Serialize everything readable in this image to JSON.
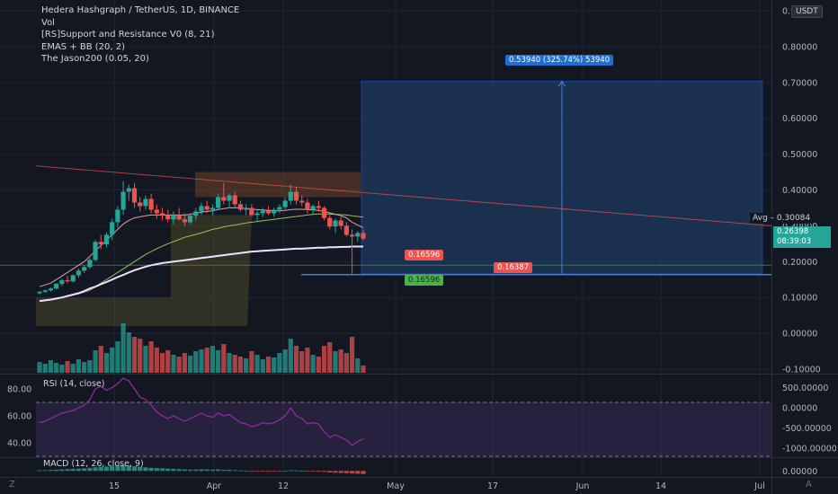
{
  "legend": {
    "title": "Hedera Hashgraph / TetherUS, 1D, BINANCE",
    "line2": "Vol",
    "line3": "[RS]Support and Resistance V0 (8, 21)",
    "line4": "EMAS + BB (20, 2)",
    "line5": "The Jason200 (0.05, 20)"
  },
  "currency_button": "USDT",
  "rsi_label": "RSI (14, close)",
  "macd_label": "MACD (12, 26, close, 9)",
  "badges": {
    "target": "0.53940 (325.74%) 53940",
    "avg_label": "Avg",
    "avg_value": "0.30084",
    "last_price": "0.26398",
    "countdown": "08:39:03",
    "low_red": "0.16596",
    "low_green": "0.16596",
    "line_label": "0.16387"
  },
  "corner": {
    "left": "Z",
    "right": "A"
  },
  "chart_data": [
    {
      "type": "candlestick",
      "title": "Hedera Hashgraph / TetherUS, 1D, BINANCE",
      "y_axis_ticks": [
        "0.90000",
        "0.80000",
        "0.70000",
        "0.60000",
        "0.50000",
        "0.40000",
        "0.30000",
        "0.20000",
        "0.10000",
        "0.00000",
        "-0.10000"
      ],
      "y_axis_values": [
        0.9,
        0.8,
        0.7,
        0.6,
        0.5,
        0.4,
        0.3,
        0.2,
        0.1,
        0.0,
        -0.1
      ],
      "x_axis_ticks": [
        "15",
        "Apr",
        "12",
        "May",
        "17",
        "Jun",
        "14",
        "Jul"
      ],
      "ylim": [
        -0.11,
        0.92
      ],
      "candles": [
        [
          0.112,
          0.118,
          0.108,
          0.116
        ],
        [
          0.116,
          0.122,
          0.112,
          0.12
        ],
        [
          0.12,
          0.128,
          0.116,
          0.125
        ],
        [
          0.125,
          0.14,
          0.122,
          0.138
        ],
        [
          0.138,
          0.152,
          0.132,
          0.148
        ],
        [
          0.148,
          0.16,
          0.14,
          0.145
        ],
        [
          0.145,
          0.165,
          0.142,
          0.162
        ],
        [
          0.162,
          0.18,
          0.155,
          0.175
        ],
        [
          0.175,
          0.19,
          0.168,
          0.185
        ],
        [
          0.185,
          0.21,
          0.18,
          0.205
        ],
        [
          0.205,
          0.26,
          0.2,
          0.255
        ],
        [
          0.255,
          0.275,
          0.235,
          0.248
        ],
        [
          0.248,
          0.282,
          0.24,
          0.275
        ],
        [
          0.275,
          0.32,
          0.26,
          0.31
        ],
        [
          0.31,
          0.355,
          0.295,
          0.345
        ],
        [
          0.345,
          0.425,
          0.33,
          0.395
        ],
        [
          0.395,
          0.415,
          0.37,
          0.405
        ],
        [
          0.405,
          0.42,
          0.35,
          0.365
        ],
        [
          0.365,
          0.38,
          0.34,
          0.355
        ],
        [
          0.355,
          0.385,
          0.345,
          0.375
        ],
        [
          0.375,
          0.39,
          0.335,
          0.345
        ],
        [
          0.345,
          0.36,
          0.32,
          0.335
        ],
        [
          0.335,
          0.35,
          0.315,
          0.33
        ],
        [
          0.33,
          0.345,
          0.31,
          0.318
        ],
        [
          0.318,
          0.34,
          0.305,
          0.33
        ],
        [
          0.33,
          0.35,
          0.315,
          0.318
        ],
        [
          0.318,
          0.335,
          0.3,
          0.31
        ],
        [
          0.31,
          0.335,
          0.305,
          0.328
        ],
        [
          0.328,
          0.35,
          0.315,
          0.34
        ],
        [
          0.34,
          0.365,
          0.33,
          0.355
        ],
        [
          0.355,
          0.37,
          0.335,
          0.345
        ],
        [
          0.345,
          0.36,
          0.33,
          0.35
        ],
        [
          0.35,
          0.39,
          0.345,
          0.38
        ],
        [
          0.38,
          0.42,
          0.36,
          0.37
        ],
        [
          0.37,
          0.39,
          0.35,
          0.385
        ],
        [
          0.385,
          0.395,
          0.35,
          0.36
        ],
        [
          0.36,
          0.37,
          0.34,
          0.345
        ],
        [
          0.345,
          0.36,
          0.33,
          0.35
        ],
        [
          0.35,
          0.36,
          0.325,
          0.33
        ],
        [
          0.33,
          0.345,
          0.31,
          0.335
        ],
        [
          0.335,
          0.35,
          0.325,
          0.342
        ],
        [
          0.342,
          0.355,
          0.33,
          0.335
        ],
        [
          0.335,
          0.35,
          0.325,
          0.345
        ],
        [
          0.345,
          0.36,
          0.335,
          0.352
        ],
        [
          0.352,
          0.38,
          0.345,
          0.37
        ],
        [
          0.37,
          0.415,
          0.36,
          0.395
        ],
        [
          0.395,
          0.41,
          0.36,
          0.37
        ],
        [
          0.37,
          0.385,
          0.355,
          0.365
        ],
        [
          0.365,
          0.375,
          0.335,
          0.345
        ],
        [
          0.345,
          0.36,
          0.33,
          0.355
        ],
        [
          0.355,
          0.37,
          0.34,
          0.35
        ],
        [
          0.35,
          0.355,
          0.315,
          0.322
        ],
        [
          0.322,
          0.33,
          0.29,
          0.298
        ],
        [
          0.298,
          0.32,
          0.28,
          0.315
        ],
        [
          0.315,
          0.325,
          0.29,
          0.3
        ],
        [
          0.3,
          0.31,
          0.27,
          0.275
        ],
        [
          0.275,
          0.29,
          0.166,
          0.27
        ],
        [
          0.27,
          0.285,
          0.255,
          0.28
        ],
        [
          0.28,
          0.29,
          0.258,
          0.264
        ]
      ],
      "volume": [
        12,
        10,
        14,
        11,
        9,
        13,
        10,
        15,
        12,
        14,
        25,
        30,
        22,
        28,
        35,
        55,
        45,
        40,
        38,
        30,
        35,
        28,
        22,
        25,
        20,
        18,
        22,
        19,
        24,
        26,
        28,
        30,
        25,
        32,
        22,
        20,
        18,
        16,
        24,
        20,
        15,
        18,
        17,
        22,
        26,
        38,
        30,
        24,
        28,
        20,
        18,
        30,
        34,
        24,
        26,
        22,
        40,
        16,
        8
      ],
      "volume_colors_up": [
        true,
        true,
        true,
        true,
        true,
        false,
        true,
        true,
        true,
        true,
        true,
        false,
        true,
        true,
        true,
        true,
        true,
        false,
        false,
        true,
        false,
        false,
        false,
        false,
        true,
        false,
        false,
        true,
        true,
        true,
        false,
        true,
        true,
        false,
        true,
        false,
        false,
        true,
        false,
        true,
        true,
        false,
        true,
        true,
        true,
        true,
        false,
        false,
        false,
        true,
        false,
        false,
        false,
        true,
        false,
        false,
        false,
        true,
        false
      ],
      "moving_average_1": [
        0.13,
        0.135,
        0.14,
        0.15,
        0.16,
        0.17,
        0.18,
        0.19,
        0.2,
        0.215,
        0.23,
        0.245,
        0.26,
        0.275,
        0.29,
        0.305,
        0.315,
        0.322,
        0.325,
        0.328,
        0.33,
        0.33,
        0.33,
        0.33,
        0.33,
        0.33,
        0.33,
        0.332,
        0.335,
        0.338,
        0.34,
        0.342,
        0.345,
        0.348,
        0.35,
        0.35,
        0.35,
        0.348,
        0.346,
        0.345,
        0.344,
        0.343,
        0.342,
        0.342,
        0.343,
        0.345,
        0.346,
        0.346,
        0.345,
        0.344,
        0.343,
        0.34,
        0.336,
        0.332,
        0.328,
        0.322,
        0.31,
        0.302,
        0.295
      ],
      "moving_average_2": [
        0.09,
        0.092,
        0.094,
        0.096,
        0.1,
        0.103,
        0.107,
        0.11,
        0.115,
        0.12,
        0.13,
        0.14,
        0.15,
        0.16,
        0.17,
        0.18,
        0.19,
        0.2,
        0.21,
        0.22,
        0.228,
        0.236,
        0.243,
        0.25,
        0.256,
        0.262,
        0.268,
        0.272,
        0.276,
        0.28,
        0.285,
        0.29,
        0.293,
        0.297,
        0.3,
        0.302,
        0.305,
        0.308,
        0.31,
        0.312,
        0.314,
        0.316,
        0.318,
        0.32,
        0.322,
        0.324,
        0.326,
        0.328,
        0.33,
        0.332,
        0.333,
        0.333,
        0.333,
        0.332,
        0.331,
        0.33,
        0.328,
        0.326,
        0.324
      ],
      "trend_line": [
        [
          0.467,
          0
        ],
        [
          0.3,
          1
        ]
      ],
      "ma200_line": [
        0.09,
        0.092,
        0.094,
        0.097,
        0.1,
        0.104,
        0.108,
        0.112,
        0.118,
        0.125,
        0.13,
        0.137,
        0.143,
        0.15,
        0.157,
        0.163,
        0.17,
        0.176,
        0.181,
        0.186,
        0.19,
        0.193,
        0.196,
        0.198,
        0.2,
        0.202,
        0.204,
        0.206,
        0.208,
        0.21,
        0.212,
        0.214,
        0.216,
        0.218,
        0.22,
        0.222,
        0.224,
        0.226,
        0.228,
        0.229,
        0.23,
        0.231,
        0.232,
        0.233,
        0.234,
        0.235,
        0.236,
        0.236,
        0.237,
        0.238,
        0.239,
        0.239,
        0.24,
        0.24,
        0.241,
        0.241,
        0.242,
        0.242,
        0.242
      ],
      "support_line_value": 0.16387,
      "target_value": 0.7034,
      "entry_value": 0.16596
    },
    {
      "type": "line",
      "title": "RSI (14, close)",
      "y_axis_ticks": [
        "80.00",
        "60.00",
        "40.00"
      ],
      "y_axis_values": [
        80,
        60,
        40
      ],
      "ylim": [
        30,
        90
      ],
      "right_axis_ticks": [
        "500.00000",
        "0.00000",
        "-500.00000",
        "-1000.00000"
      ],
      "right_axis_values": [
        500,
        0,
        -500,
        -1000
      ],
      "right_ylim": [
        -1200,
        800
      ],
      "values": [
        55,
        56,
        58,
        60,
        62,
        63,
        64,
        66,
        68,
        72,
        80,
        82,
        79,
        81,
        84,
        88,
        86,
        80,
        74,
        72,
        68,
        63,
        60,
        58,
        60,
        58,
        56,
        58,
        60,
        62,
        60,
        59,
        62,
        60,
        61,
        58,
        55,
        54,
        52,
        53,
        55,
        54,
        55,
        57,
        60,
        66,
        60,
        58,
        54,
        55,
        54,
        48,
        44,
        46,
        44,
        42,
        38,
        41,
        43
      ],
      "upper_band": 70,
      "lower_band": 30
    },
    {
      "type": "bar",
      "title": "MACD (12, 26, close, 9)",
      "right_axis_ticks": [
        "0.00000"
      ],
      "right_axis_values": [
        0
      ],
      "ylim": [
        -0.02,
        0.05
      ],
      "histogram": [
        0.002,
        0.003,
        0.004,
        0.005,
        0.006,
        0.007,
        0.008,
        0.009,
        0.01,
        0.012,
        0.014,
        0.016,
        0.017,
        0.018,
        0.02,
        0.022,
        0.02,
        0.018,
        0.016,
        0.014,
        0.012,
        0.011,
        0.01,
        0.009,
        0.008,
        0.007,
        0.006,
        0.005,
        0.005,
        0.006,
        0.006,
        0.005,
        0.006,
        0.004,
        0.005,
        0.003,
        0.002,
        0.001,
        -0.001,
        -0.002,
        -0.002,
        -0.003,
        -0.002,
        -0.001,
        0.001,
        0.003,
        0.002,
        0.001,
        -0.001,
        -0.002,
        -0.003,
        -0.004,
        -0.006,
        -0.007,
        -0.008,
        -0.009,
        -0.01,
        -0.011,
        -0.012
      ]
    }
  ],
  "colors": {
    "background": "#131722",
    "up": "#26a69a",
    "down": "#ef5350",
    "blue_box": "#1e3a5f",
    "blue_line": "#2962ff",
    "grid": "#1f2430",
    "rsi_line": "#9c27b0"
  }
}
